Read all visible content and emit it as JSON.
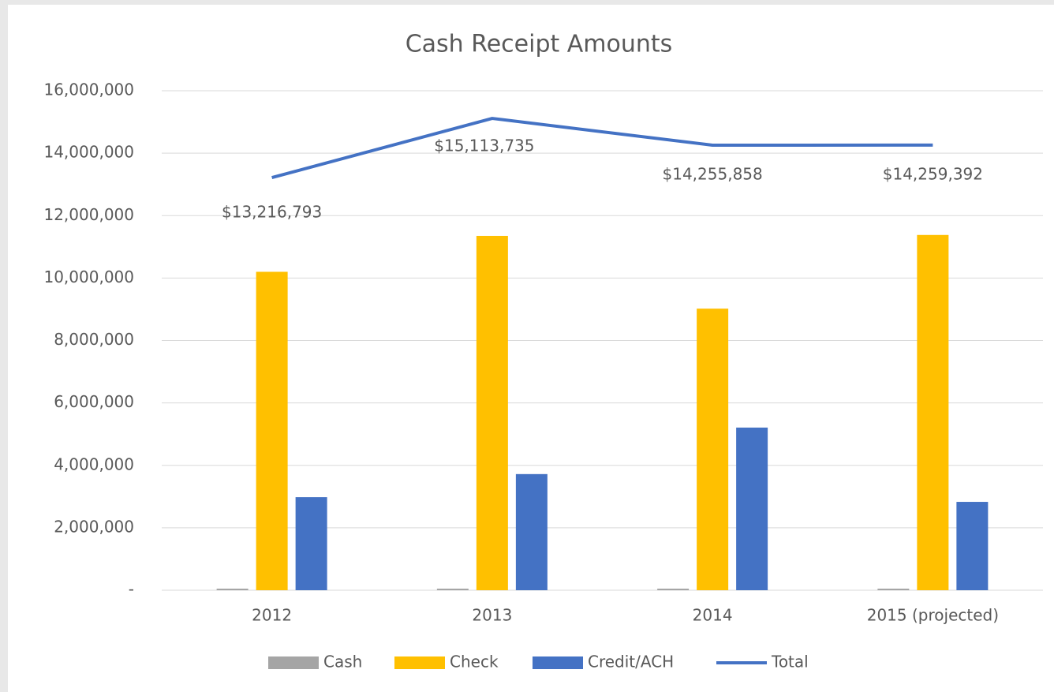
{
  "chart_data": {
    "type": "bar",
    "title": "Cash Receipt Amounts",
    "categories": [
      "2012",
      "2013",
      "2014",
      "2015 (projected)"
    ],
    "series": [
      {
        "name": "Cash",
        "color": "#a5a5a5",
        "values": [
          50000,
          50000,
          50000,
          50000
        ]
      },
      {
        "name": "Check",
        "color": "#ffc000",
        "values": [
          10200000,
          11350000,
          9020000,
          11380000
        ]
      },
      {
        "name": "Credit/ACH",
        "color": "#4472c4",
        "values": [
          2980000,
          3720000,
          5210000,
          2830000
        ]
      },
      {
        "name": "Total",
        "type": "line",
        "color": "#4472c4",
        "values": [
          13216793,
          15113735,
          14255858,
          14259392
        ],
        "value_labels": [
          "$13,216,793",
          "$15,113,735",
          "$14,255,858",
          "$14,259,392"
        ]
      }
    ],
    "ylim": [
      0,
      16000000
    ],
    "yticks": [
      {
        "value": 0,
        "label": "-"
      },
      {
        "value": 2000000,
        "label": "2,000,000"
      },
      {
        "value": 4000000,
        "label": "4,000,000"
      },
      {
        "value": 6000000,
        "label": "6,000,000"
      },
      {
        "value": 8000000,
        "label": "8,000,000"
      },
      {
        "value": 10000000,
        "label": "10,000,000"
      },
      {
        "value": 12000000,
        "label": "12,000,000"
      },
      {
        "value": 14000000,
        "label": "14,000,000"
      },
      {
        "value": 16000000,
        "label": "16,000,000"
      }
    ],
    "grid": true,
    "legend": "bottom"
  }
}
